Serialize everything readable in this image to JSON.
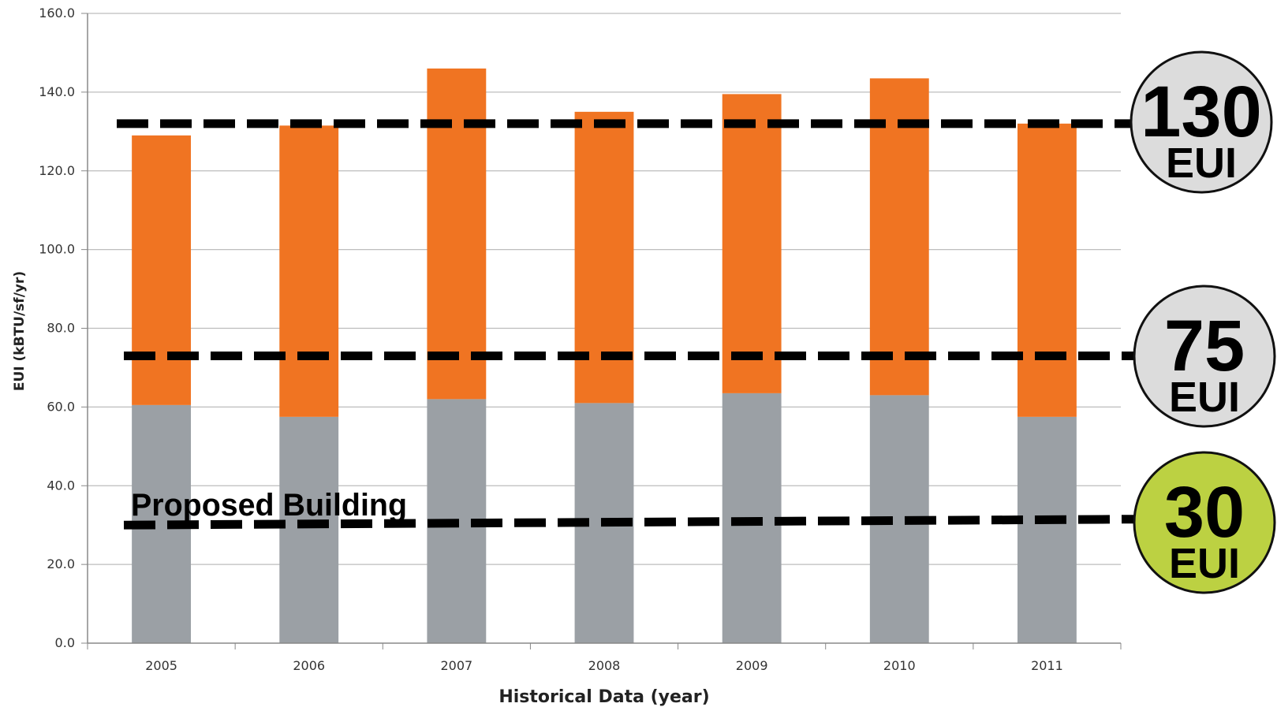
{
  "chart_data": {
    "type": "bar",
    "stacked": true,
    "categories": [
      "2005",
      "2006",
      "2007",
      "2008",
      "2009",
      "2010",
      "2011"
    ],
    "series": [
      {
        "color": "#9ba0a5",
        "values": [
          60.5,
          57.5,
          62.0,
          61.0,
          63.5,
          63.0,
          57.5
        ]
      },
      {
        "color": "#f07422",
        "values": [
          68.5,
          74.0,
          84.0,
          74.0,
          76.0,
          80.5,
          74.5
        ]
      }
    ],
    "xlabel": "Historical Data (year)",
    "ylabel": "EUI (kBTU/sf/yr)",
    "ylim": [
      0,
      160
    ],
    "yticks": [
      "0.0",
      "20.0",
      "40.0",
      "60.0",
      "80.0",
      "100.0",
      "120.0",
      "140.0",
      "160.0"
    ],
    "grid": true,
    "reference_lines": [
      {
        "value_start": 132,
        "value_end": 132,
        "badge_number": "130",
        "badge_unit": "EUI",
        "badge_color": "#dcdcdc"
      },
      {
        "value_start": 73,
        "value_end": 73,
        "badge_number": "75",
        "badge_unit": "EUI",
        "badge_color": "#dcdcdc"
      },
      {
        "value_start": 30,
        "value_end": 31.5,
        "badge_number": "30",
        "badge_unit": "EUI",
        "badge_color": "#bcd142"
      }
    ],
    "annotation": "Proposed Building"
  }
}
